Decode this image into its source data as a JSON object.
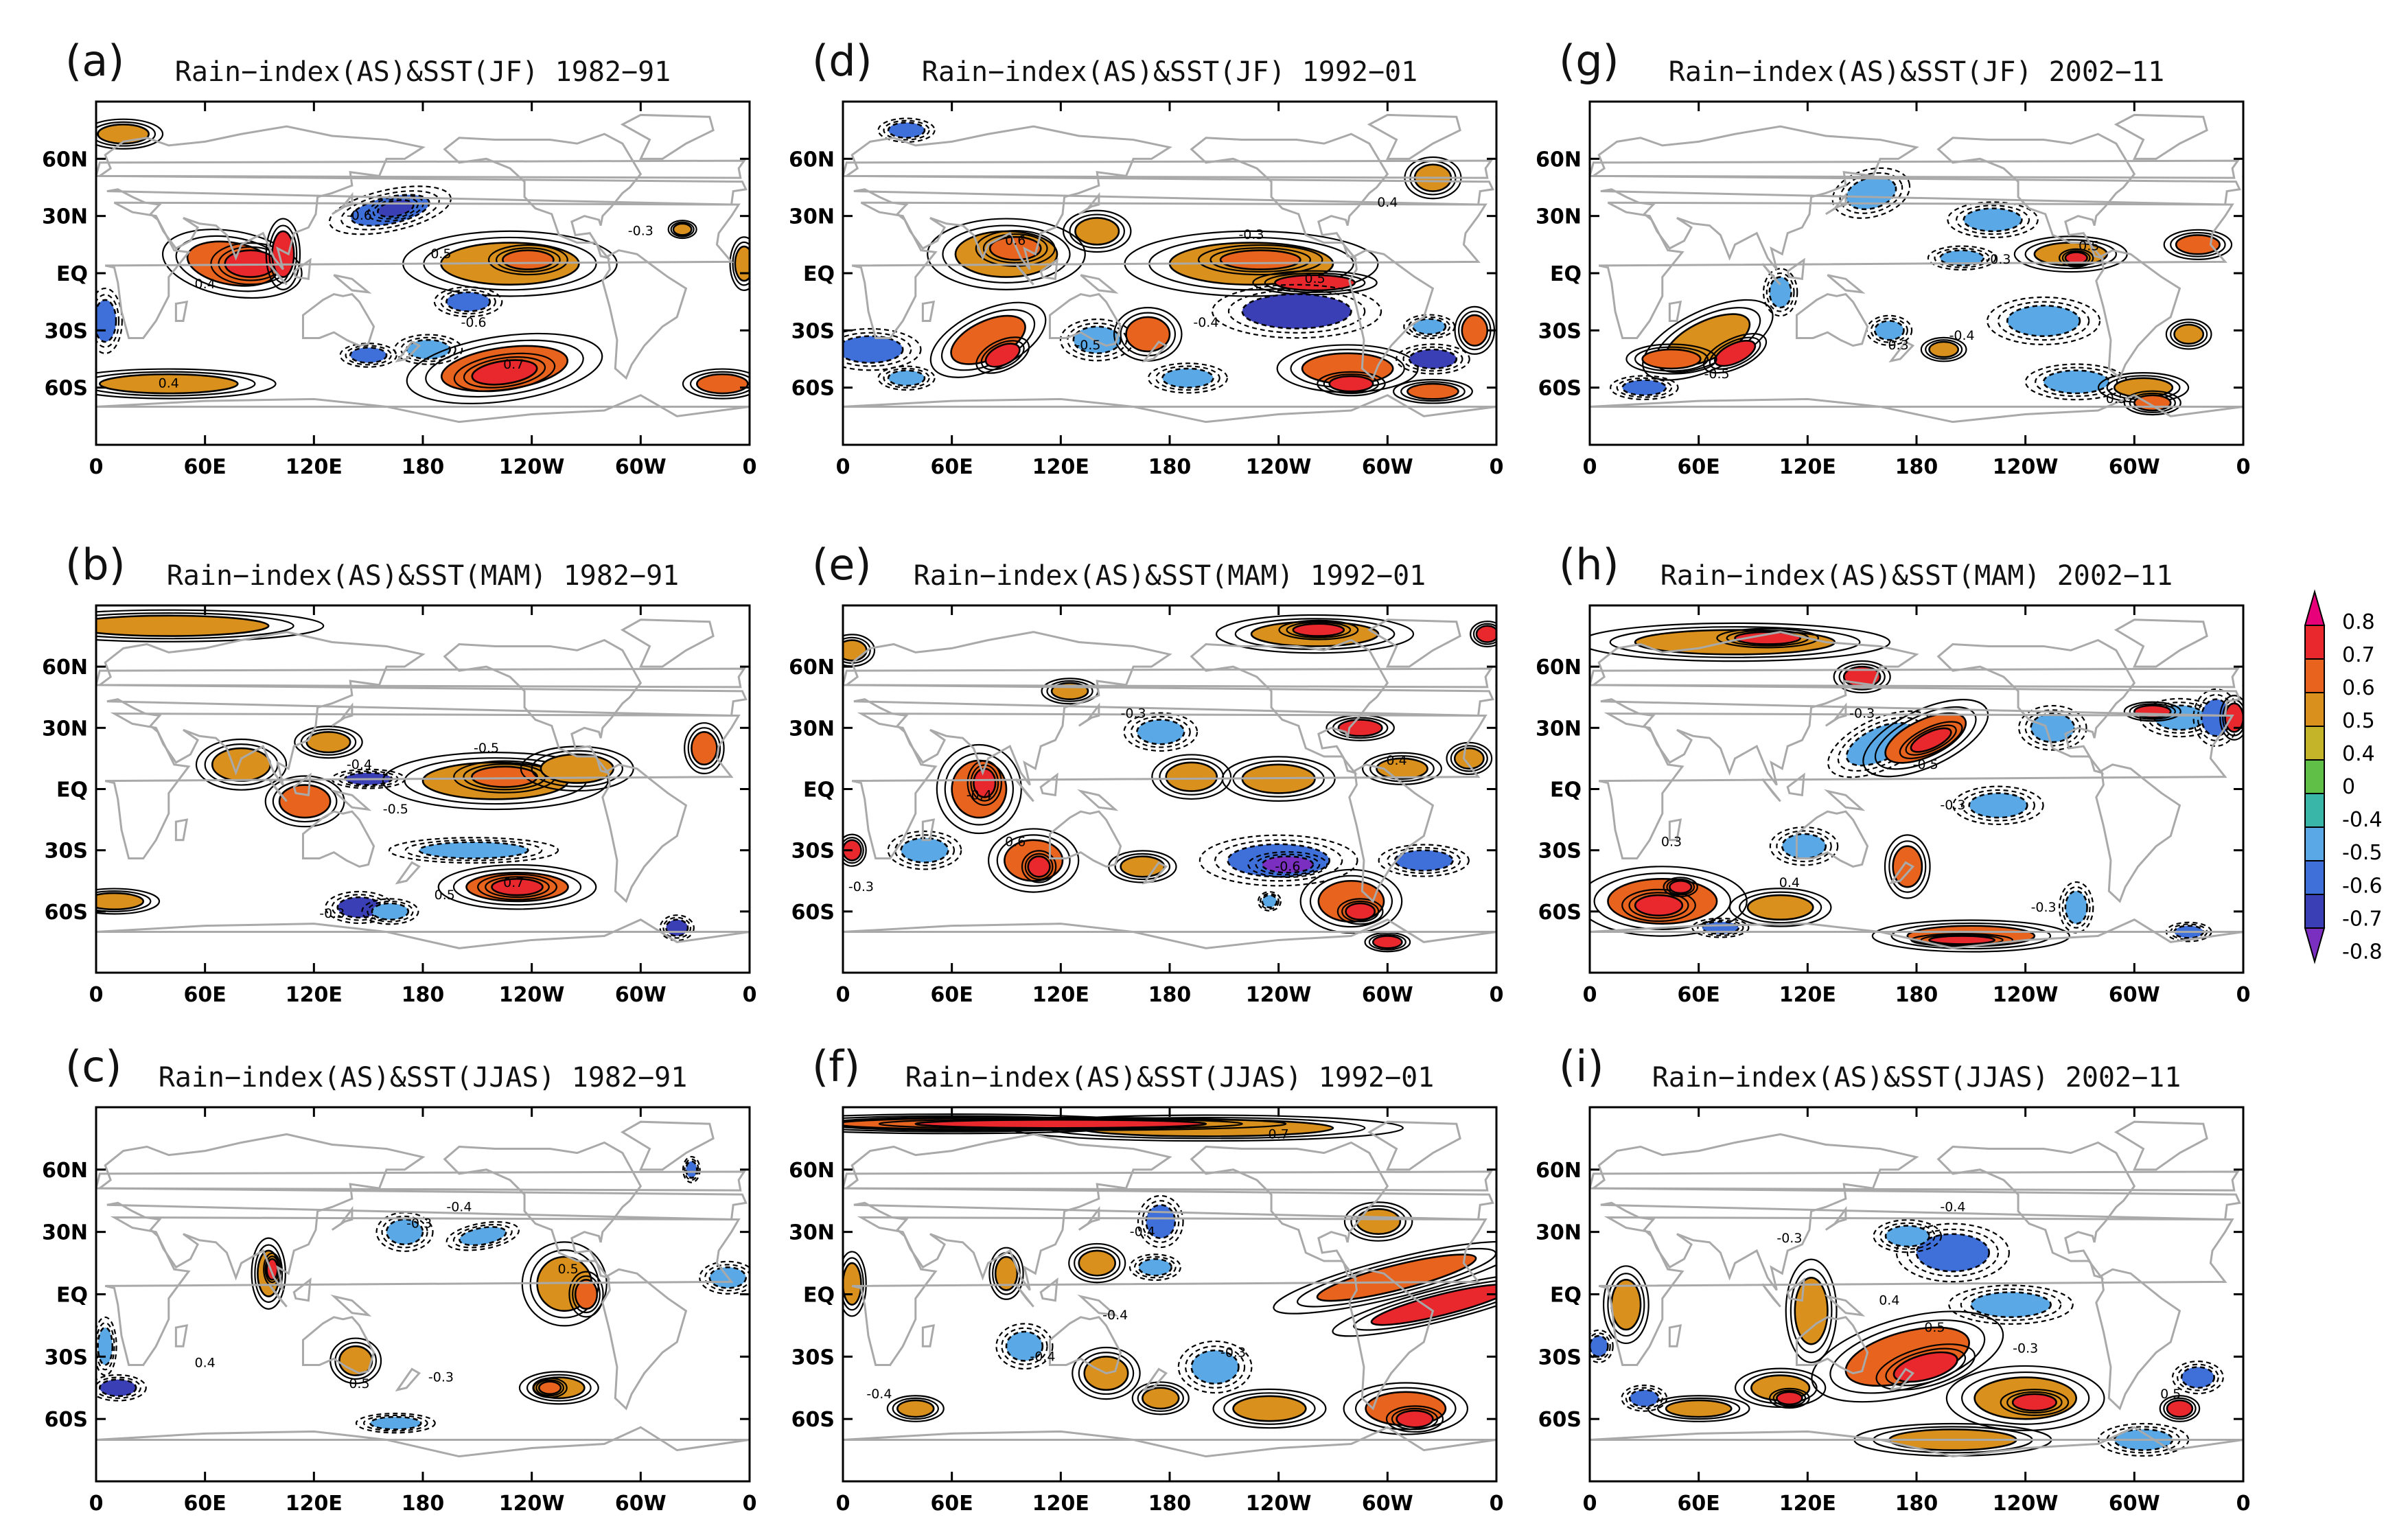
{
  "figure": {
    "panels": [
      {
        "id": "a",
        "letter": "(a)",
        "title": "Rain−index(AS)&SST(JF)  1982−91"
      },
      {
        "id": "b",
        "letter": "(b)",
        "title": "Rain−index(AS)&SST(MAM)  1982−91"
      },
      {
        "id": "c",
        "letter": "(c)",
        "title": "Rain−index(AS)&SST(JJAS)  1982−91"
      },
      {
        "id": "d",
        "letter": "(d)",
        "title": "Rain−index(AS)&SST(JF)  1992−01"
      },
      {
        "id": "e",
        "letter": "(e)",
        "title": "Rain−index(AS)&SST(MAM)  1992−01"
      },
      {
        "id": "f",
        "letter": "(f)",
        "title": "Rain−index(AS)&SST(JJAS)  1992−01"
      },
      {
        "id": "g",
        "letter": "(g)",
        "title": "Rain−index(AS)&SST(JF)  2002−11"
      },
      {
        "id": "h",
        "letter": "(h)",
        "title": "Rain−index(AS)&SST(MAM)  2002−11"
      },
      {
        "id": "i",
        "letter": "(i)",
        "title": "Rain−index(AS)&SST(JJAS)  2002−11"
      }
    ],
    "lat_ticks": [
      "60N",
      "30N",
      "EQ",
      "30S",
      "60S"
    ],
    "lon_ticks": [
      "0",
      "60E",
      "120E",
      "180",
      "120W",
      "60W",
      "0"
    ],
    "colorbar": {
      "labels": [
        "0.8",
        "0.7",
        "0.6",
        "0.5",
        "0.4",
        "0",
        "-0.4",
        "-0.5",
        "-0.6",
        "-0.7",
        "-0.8"
      ],
      "colors": [
        "#e8007a",
        "#e8282c",
        "#e8641e",
        "#d9901c",
        "#c4b42a",
        "#5fbf46",
        "#3ab6a8",
        "#5aa9e6",
        "#3f6fd8",
        "#3a3fb6",
        "#7a2fc0"
      ]
    },
    "palette": {
      "pos07": "#e8282c",
      "pos06": "#e8641e",
      "pos05": "#d9901c",
      "neg05": "#5aa9e6",
      "neg06": "#3f6fd8",
      "neg07": "#3a3fb6",
      "neg08": "#7a2fc0",
      "coast": "#a9a9a9"
    },
    "contour_labels": [
      "0.3",
      "0.4",
      "0.5",
      "0.6",
      "0.7",
      "-0.3",
      "-0.4",
      "-0.5",
      "-0.6"
    ]
  }
}
